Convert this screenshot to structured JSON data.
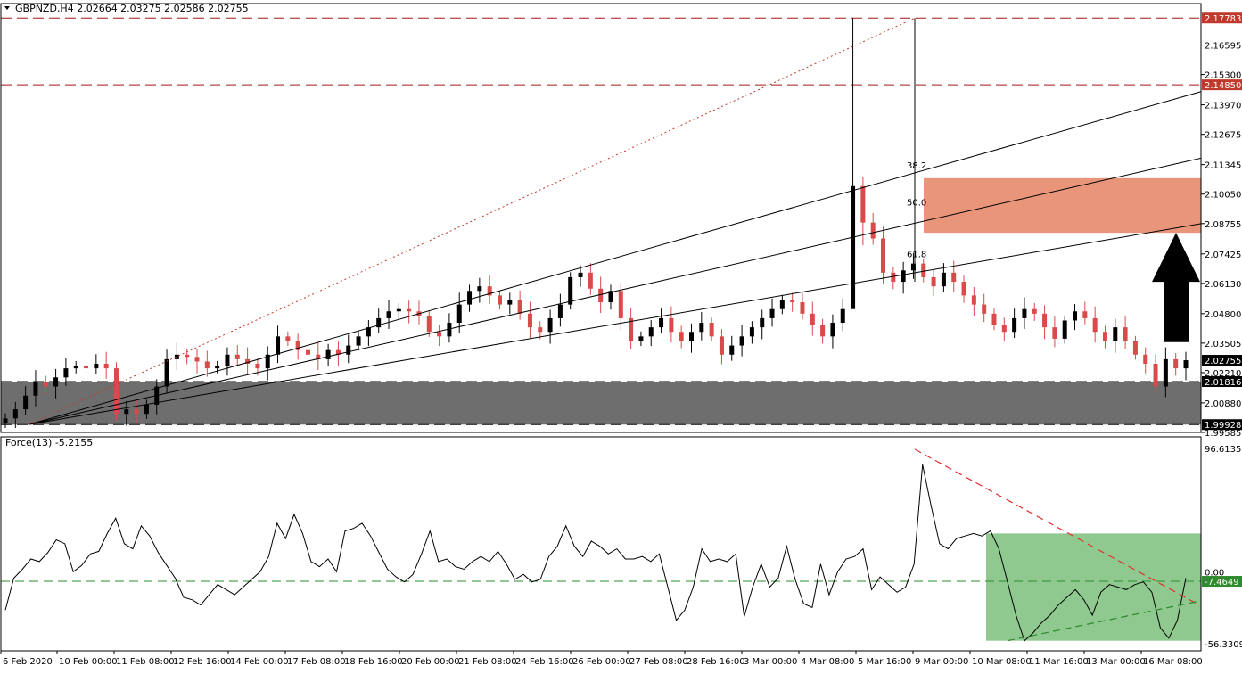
{
  "header": {
    "symbol_line": "GBPNZD,H4  2.02664 2.03275 2.02586 2.02755"
  },
  "indicator": {
    "label": "Force(13) -5.2155"
  },
  "colors": {
    "bull": "#000000",
    "bear": "#d94a4a",
    "resistance_zone": "#e8957a",
    "support_zone": "#6e6e6e",
    "indicator_zone": "#8fc98f",
    "price_tag_red": "#c0392b",
    "price_tag_black": "#000000",
    "arrow": "#000000"
  },
  "chart_data": [
    {
      "type": "candlestick",
      "title": "GBPNZD,H4",
      "ohlc": {
        "open": 2.02664,
        "high": 2.03275,
        "low": 2.02586,
        "close": 2.02755
      },
      "ylim": [
        1.99585,
        2.18418
      ],
      "y_ticks": [
        "2.16595",
        "2.15300",
        "2.13970",
        "2.12675",
        "2.11345",
        "2.10050",
        "2.08755",
        "2.07425",
        "2.06130",
        "2.04800",
        "2.03505",
        "2.02210",
        "2.00880",
        "1.99585"
      ],
      "price_labels": [
        {
          "value": 2.17783,
          "text": "2.17783",
          "style": "red"
        },
        {
          "value": 2.1485,
          "text": "2.14850",
          "style": "red"
        },
        {
          "value": 2.02755,
          "text": "2.02755",
          "style": "black"
        },
        {
          "value": 2.01816,
          "text": "2.01816",
          "style": "black"
        },
        {
          "value": 1.99928,
          "text": "1.99928",
          "style": "black"
        }
      ],
      "horizontal_lines": [
        2.17783,
        2.1485,
        2.01816,
        1.99928
      ],
      "zones": [
        {
          "name": "resistance",
          "from": 2.0835,
          "to": 2.1075,
          "color": "#e8957a"
        },
        {
          "name": "support",
          "from": 1.99928,
          "to": 2.01816,
          "color": "#6e6e6e"
        }
      ],
      "fib_fan_labels": [
        {
          "text": "38.2",
          "price": 2.1117
        },
        {
          "text": "50.0",
          "price": 2.0955
        },
        {
          "text": "61.8",
          "price": 2.0728
        }
      ],
      "x_labels": [
        "6 Feb 2020",
        "10 Feb 00:00",
        "11 Feb 08:00",
        "12 Feb 16:00",
        "14 Feb 00:00",
        "17 Feb 08:00",
        "18 Feb 16:00",
        "20 Feb 00:00",
        "21 Feb 08:00",
        "24 Feb 16:00",
        "26 Feb 00:00",
        "27 Feb 08:00",
        "28 Feb 16:00",
        "3 Mar 00:00",
        "4 Mar 08:00",
        "5 Mar 16:00",
        "9 Mar 00:00",
        "10 Mar 08:00",
        "11 Mar 16:00",
        "13 Mar 00:00",
        "16 Mar 08:00"
      ],
      "close_path": [
        2.002,
        2.006,
        2.012,
        2.018,
        2.016,
        2.02,
        2.024,
        2.025,
        2.024,
        2.026,
        2.024,
        2.004,
        2.006,
        2.004,
        2.008,
        2.016,
        2.028,
        2.03,
        2.029,
        2.027,
        2.024,
        2.025,
        2.03,
        2.028,
        2.026,
        2.024,
        2.03,
        2.038,
        2.036,
        2.032,
        2.03,
        2.028,
        2.032,
        2.03,
        2.034,
        2.038,
        2.042,
        2.046,
        2.049,
        2.05,
        2.049,
        2.047,
        2.04,
        2.038,
        2.044,
        2.052,
        2.058,
        2.06,
        2.056,
        2.052,
        2.054,
        2.048,
        2.042,
        2.04,
        2.046,
        2.052,
        2.064,
        2.066,
        2.059,
        2.053,
        2.058,
        2.046,
        2.036,
        2.038,
        2.042,
        2.046,
        2.04,
        2.036,
        2.04,
        2.044,
        2.038,
        2.03,
        2.034,
        2.038,
        2.042,
        2.046,
        2.05,
        2.054,
        2.053,
        2.048,
        2.043,
        2.038,
        2.044,
        2.05,
        2.104,
        2.088,
        2.081,
        2.066,
        2.062,
        2.067,
        2.07,
        2.064,
        2.06,
        2.066,
        2.062,
        2.056,
        2.052,
        2.048,
        2.043,
        2.04,
        2.046,
        2.05,
        2.048,
        2.042,
        2.037,
        2.045,
        2.049,
        2.046,
        2.04,
        2.036,
        2.042,
        2.036,
        2.03,
        2.026,
        2.016,
        2.028,
        2.024,
        2.02755
      ]
    },
    {
      "type": "line",
      "title": "Force(13) -5.2155",
      "ylim": [
        -56.3309,
        96.6135
      ],
      "y_ticks": [
        "96.6135",
        "0.00",
        "-56.3309"
      ],
      "level_label": {
        "value": -7.4649,
        "text": "-7.4649"
      },
      "values": [
        -30,
        -5,
        2,
        10,
        8,
        15,
        25,
        22,
        0,
        5,
        14,
        16,
        30,
        42,
        22,
        18,
        36,
        28,
        15,
        5,
        -5,
        -20,
        -22,
        -26,
        -18,
        -10,
        -14,
        -18,
        -12,
        -6,
        0,
        12,
        38,
        26,
        45,
        30,
        8,
        4,
        10,
        0,
        32,
        34,
        38,
        28,
        15,
        2,
        -4,
        -8,
        -2,
        14,
        32,
        8,
        10,
        4,
        2,
        8,
        12,
        8,
        16,
        6,
        -6,
        -2,
        -8,
        -6,
        12,
        20,
        36,
        20,
        12,
        24,
        20,
        14,
        18,
        10,
        10,
        12,
        8,
        14,
        -12,
        -38,
        -30,
        -12,
        18,
        8,
        10,
        8,
        14,
        -35,
        -12,
        6,
        -12,
        -5,
        20,
        -6,
        -25,
        -28,
        6,
        -18,
        0,
        10,
        12,
        18,
        -14,
        -4,
        -10,
        -16,
        -12,
        6,
        84,
        52,
        22,
        18,
        26,
        28,
        30,
        28,
        32,
        18,
        -8,
        -34,
        -54,
        -48,
        -40,
        -34,
        -26,
        -20,
        -14,
        -22,
        -34,
        -16,
        -10,
        -12,
        -14,
        -10,
        -8,
        -16,
        -44,
        -52,
        -38,
        -5
      ],
      "zone": {
        "from": -54,
        "to": 30,
        "color": "#8fc98f"
      }
    }
  ]
}
